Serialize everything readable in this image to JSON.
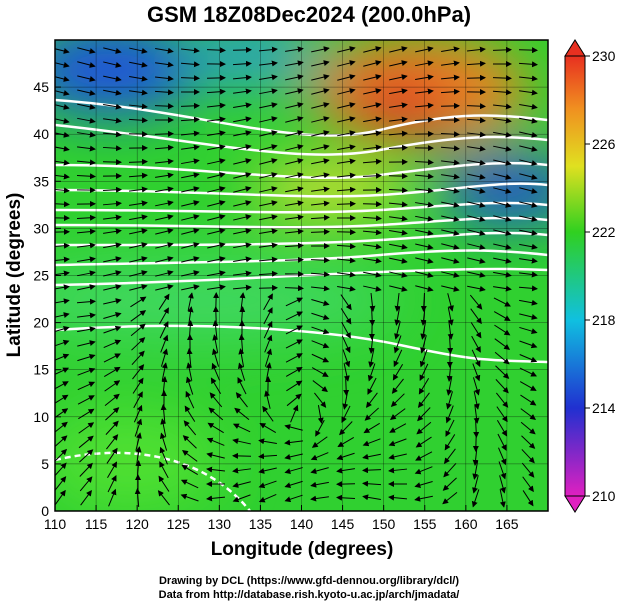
{
  "chart_data": {
    "type": "map",
    "title": "GSM 18Z08Dec2024 (200.0hPa)",
    "x_label": "Longitude (degrees)",
    "y_label": "Latitude  (degrees)",
    "xlim": [
      110,
      170
    ],
    "xticks": [
      110,
      115,
      120,
      125,
      130,
      135,
      140,
      145,
      150,
      155,
      160,
      165
    ],
    "ylim": [
      0,
      50
    ],
    "yticks": [
      0,
      5,
      10,
      15,
      20,
      25,
      30,
      35,
      40,
      45
    ],
    "grid": true,
    "colorbar": {
      "lim": [
        210,
        230
      ],
      "ticks": [
        210,
        214,
        218,
        222,
        226,
        230
      ]
    },
    "credits": [
      "Drawing by DCL (https://www.gfd-dennou.org/library/dcl/)",
      "Data from http://database.rish.kyoto-u.ac.jp/arch/jmadata/"
    ]
  }
}
